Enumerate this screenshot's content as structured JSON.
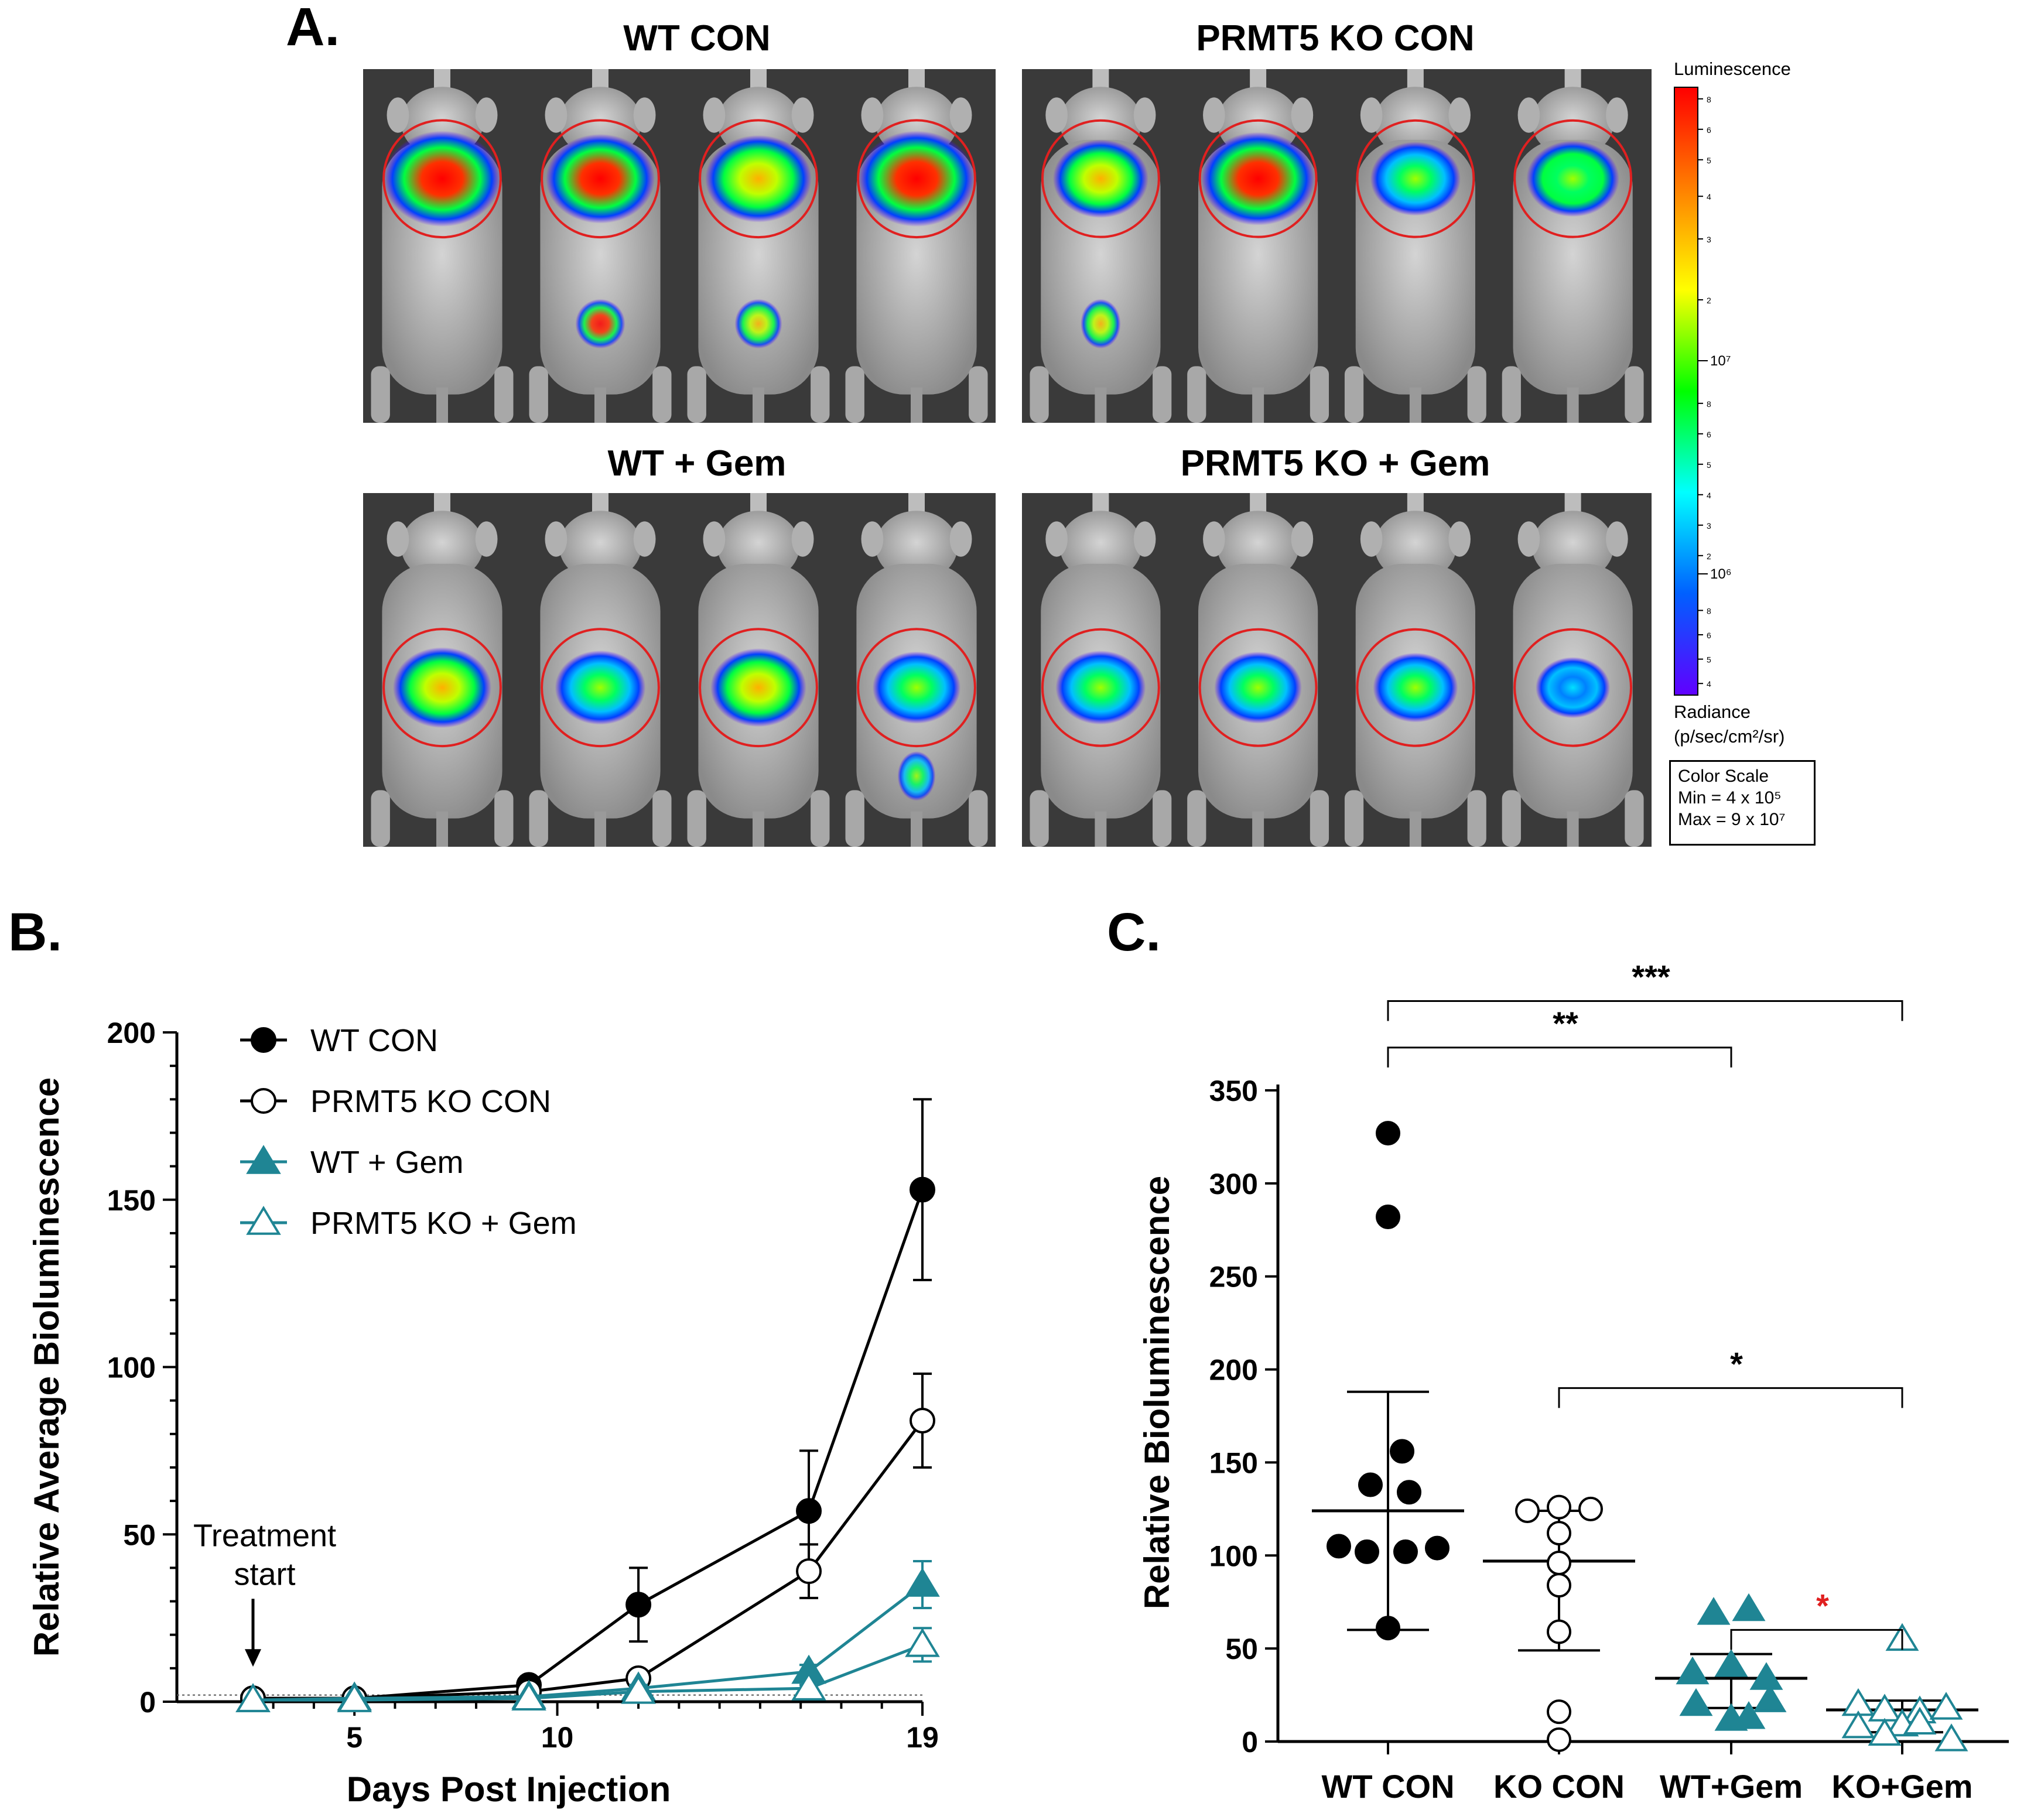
{
  "figure": {
    "panel_a_label": "A.",
    "panel_b_label": "B.",
    "panel_c_label": "C."
  },
  "panel_a": {
    "groups": [
      {
        "title": "WT CON",
        "intensity": [
          1.0,
          0.85,
          0.8,
          1.0
        ],
        "secondary": [
          0.0,
          0.55,
          0.5,
          0.0
        ]
      },
      {
        "title": "PRMT5 KO CON",
        "intensity": [
          0.6,
          0.95,
          0.5,
          0.55
        ],
        "secondary": [
          0.35,
          0.0,
          0.0,
          0.0
        ]
      },
      {
        "title": "WT + Gem",
        "intensity": [
          0.65,
          0.5,
          0.6,
          0.45
        ],
        "secondary": [
          0.0,
          0.0,
          0.0,
          0.3
        ]
      },
      {
        "title": "PRMT5 KO + Gem",
        "intensity": [
          0.5,
          0.45,
          0.4,
          0.2
        ],
        "secondary": [
          0.0,
          0.0,
          0.0,
          0.0
        ]
      }
    ],
    "colorbar": {
      "title": "Luminescence",
      "unit_line1": "Radiance",
      "unit_line2": "(p/sec/cm²/sr)",
      "tick_7": "10⁷",
      "tick_6": "10⁶",
      "minor_ticks": [
        "8",
        "6",
        "5",
        "4",
        "3",
        "2",
        "8",
        "6",
        "5",
        "4",
        "3",
        "2",
        "8",
        "6",
        "5",
        "4"
      ],
      "colors": [
        "#ff0000",
        "#ff8000",
        "#ffff00",
        "#00ff00",
        "#00ffff",
        "#0060ff",
        "#6000ff"
      ]
    },
    "color_scale": {
      "line1": "Color Scale",
      "line2": "Min = 4 x 10⁵",
      "line3": "Max = 9 x 10⁷"
    }
  },
  "chart_data": [
    {
      "type": "line",
      "panel": "B",
      "xlabel": "Days Post Injection",
      "ylabel": "Relative Average Bioluminescence",
      "xlim": [
        0,
        19
      ],
      "ylim": [
        0,
        200
      ],
      "xticks": [
        5,
        10,
        19
      ],
      "yticks": [
        0,
        50,
        100,
        150,
        200
      ],
      "baseline": 2,
      "series": [
        {
          "name": "WT CON",
          "marker": "circle-filled",
          "color": "#000000",
          "x": [
            2.5,
            5,
            9.3,
            12,
            16.2,
            19
          ],
          "y": [
            1,
            1,
            5,
            29,
            57,
            153
          ],
          "err": [
            0,
            0,
            1,
            11,
            18,
            27
          ]
        },
        {
          "name": "PRMT5 KO CON",
          "marker": "circle-open",
          "color": "#000000",
          "x": [
            2.5,
            5,
            9.3,
            12,
            16.2,
            19
          ],
          "y": [
            1,
            1,
            3,
            7,
            39,
            84
          ],
          "err": [
            0,
            0,
            1,
            2,
            8,
            14
          ]
        },
        {
          "name": "WT + Gem",
          "marker": "triangle-filled",
          "color": "#1f8594",
          "x": [
            2.5,
            5,
            9.3,
            12,
            16.2,
            19
          ],
          "y": [
            0.5,
            1,
            1.5,
            4,
            9,
            35
          ],
          "err": [
            0,
            0,
            0.5,
            1,
            2,
            7
          ]
        },
        {
          "name": "PRMT5 KO + Gem",
          "marker": "triangle-open",
          "color": "#1f8594",
          "x": [
            2.5,
            5,
            9.3,
            12,
            16.2,
            19
          ],
          "y": [
            0.5,
            0.5,
            1,
            3,
            4,
            17
          ],
          "err": [
            0,
            0,
            0.5,
            1,
            1,
            5
          ]
        }
      ],
      "annotation": {
        "line1": "Treatment",
        "line2": "start",
        "x": 2.5
      }
    },
    {
      "type": "scatter",
      "panel": "C",
      "ylabel": "Relative Bioluminescence",
      "ylim": [
        0,
        350
      ],
      "yticks": [
        0,
        50,
        100,
        150,
        200,
        250,
        300,
        350
      ],
      "categories": [
        "WT CON",
        "KO CON",
        "WT+Gem",
        "KO+Gem"
      ],
      "groups": [
        {
          "name": "WT CON",
          "marker": "circle-filled",
          "color": "#000000",
          "mean": 124,
          "err_low": 60,
          "err_high": 188,
          "points": [
            [
              0,
              327
            ],
            [
              0,
              282
            ],
            [
              0.08,
              156
            ],
            [
              -0.1,
              138
            ],
            [
              0.12,
              134
            ],
            [
              -0.28,
              105
            ],
            [
              0.28,
              104
            ],
            [
              -0.12,
              102
            ],
            [
              0.1,
              102
            ],
            [
              0,
              61
            ]
          ]
        },
        {
          "name": "KO CON",
          "marker": "circle-open",
          "color": "#000000",
          "mean": 97,
          "err_low": 49,
          "err_high": 124,
          "points": [
            [
              -0.18,
              124
            ],
            [
              0,
              126
            ],
            [
              0.18,
              125
            ],
            [
              0,
              112
            ],
            [
              0,
              96
            ],
            [
              0,
              84
            ],
            [
              0,
              59
            ],
            [
              0,
              16
            ],
            [
              0,
              1
            ]
          ]
        },
        {
          "name": "WT+Gem",
          "marker": "triangle-filled",
          "color": "#1f8594",
          "mean": 34,
          "err_low": 18,
          "err_high": 47,
          "points": [
            [
              -0.1,
              69
            ],
            [
              0.1,
              71
            ],
            [
              0,
              41
            ],
            [
              -0.22,
              37
            ],
            [
              0.2,
              34
            ],
            [
              -0.2,
              20
            ],
            [
              0.22,
              22
            ],
            [
              0,
              12
            ],
            [
              0.1,
              13
            ]
          ]
        },
        {
          "name": "KO+Gem",
          "marker": "triangle-open",
          "color": "#1f8594",
          "mean": 17,
          "err_low": 5,
          "err_high": 22,
          "points": [
            [
              0,
              55
            ],
            [
              -0.25,
              20
            ],
            [
              -0.1,
              17
            ],
            [
              0.1,
              16
            ],
            [
              0.25,
              18
            ],
            [
              -0.25,
              8
            ],
            [
              0,
              9
            ],
            [
              0.1,
              10
            ],
            [
              0.28,
              1
            ],
            [
              -0.1,
              4
            ]
          ]
        }
      ],
      "significance": [
        {
          "from": 0,
          "to": 3,
          "label": "***",
          "color": "#000000",
          "y": 398
        },
        {
          "from": 0,
          "to": 2,
          "label": "**",
          "color": "#000000",
          "y": 373
        },
        {
          "from": 1,
          "to": 3,
          "label": "*",
          "color": "#000000",
          "y": 190
        },
        {
          "from": 2,
          "to": 3,
          "label": "*",
          "color": "#e02020",
          "y": 60
        }
      ]
    }
  ]
}
